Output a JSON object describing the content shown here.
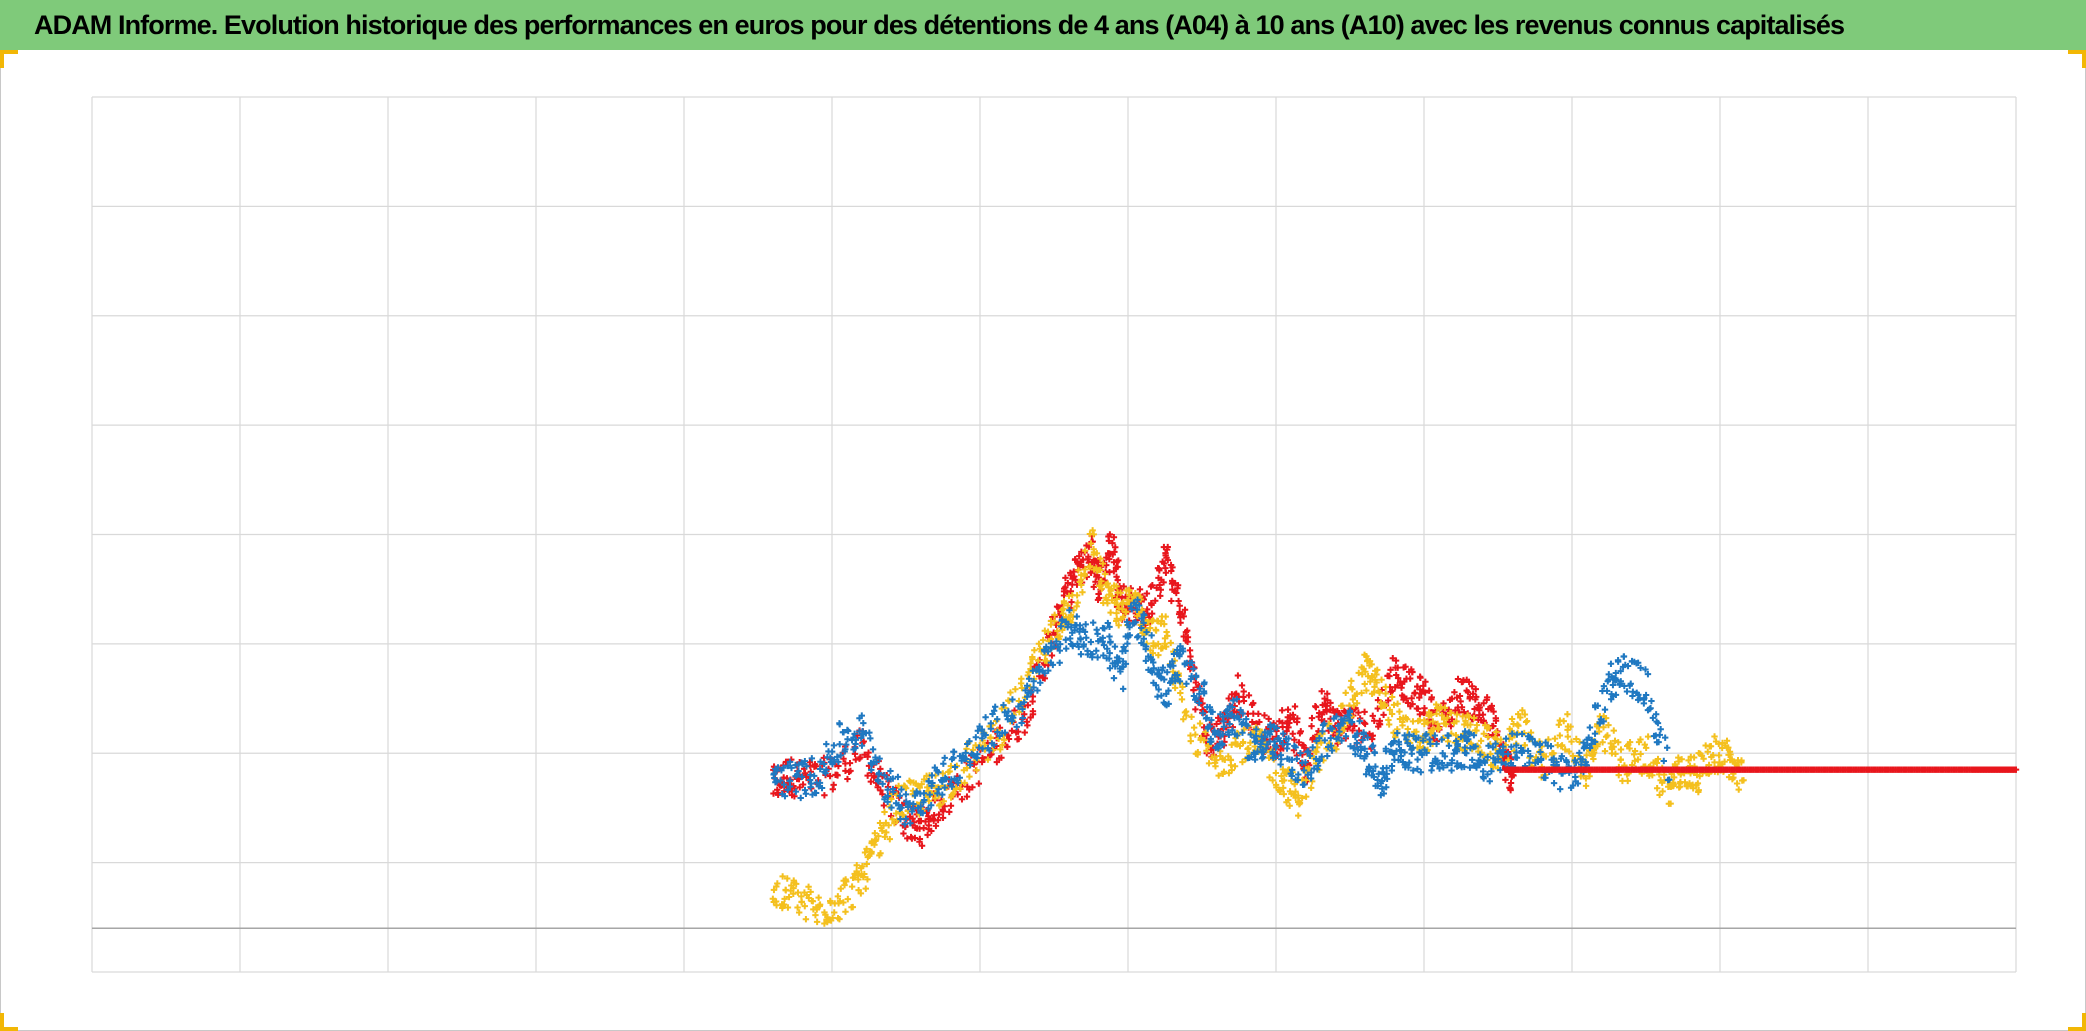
{
  "title": "ADAM Informe. Evolution historique des performances en euros pour des détentions de 4 ans (A04) à 10 ans (A10) avec les revenus connus capitalisés",
  "colors": {
    "title_bar": "#7fca7a",
    "grid": "#d9d9d9",
    "zero_line": "#a6a6a6",
    "corner_accent": "#f2b705"
  },
  "chart_data": {
    "type": "scatter",
    "marker": "plus",
    "grid": true,
    "xlabel": "",
    "ylabel": "",
    "x_divisions": 13,
    "y_divisions": 8,
    "zero_line": true,
    "series": [
      {
        "color": "#e8161c",
        "points": [
          [
            4.6,
            -0.9
          ],
          [
            4.7,
            -0.8
          ],
          [
            4.8,
            -0.85
          ],
          [
            5.0,
            -0.8
          ],
          [
            5.2,
            -0.55
          ],
          [
            5.35,
            -0.95
          ],
          [
            5.5,
            -1.2
          ],
          [
            5.6,
            -1.3
          ],
          [
            5.7,
            -1.1
          ],
          [
            5.9,
            -0.85
          ],
          [
            6.1,
            -0.55
          ],
          [
            6.3,
            -0.25
          ],
          [
            6.45,
            0.3
          ],
          [
            6.55,
            0.75
          ],
          [
            6.65,
            1.05
          ],
          [
            6.75,
            1.25
          ],
          [
            6.8,
            0.95
          ],
          [
            6.9,
            1.3
          ],
          [
            6.95,
            0.8
          ],
          [
            7.05,
            0.75
          ],
          [
            7.15,
            0.7
          ],
          [
            7.25,
            1.2
          ],
          [
            7.35,
            0.75
          ],
          [
            7.45,
            0.05
          ],
          [
            7.55,
            -0.5
          ],
          [
            7.65,
            -0.35
          ],
          [
            7.75,
            -0.05
          ],
          [
            7.9,
            -0.4
          ],
          [
            8.0,
            -0.5
          ],
          [
            8.1,
            -0.25
          ],
          [
            8.2,
            -0.75
          ],
          [
            8.3,
            -0.1
          ],
          [
            8.4,
            -0.35
          ],
          [
            8.5,
            -0.3
          ],
          [
            8.65,
            -0.4
          ],
          [
            8.8,
            0.15
          ],
          [
            8.9,
            0.0
          ],
          [
            9.0,
            -0.1
          ],
          [
            9.1,
            -0.35
          ],
          [
            9.25,
            -0.05
          ],
          [
            9.35,
            -0.15
          ],
          [
            9.45,
            -0.3
          ],
          [
            9.55,
            -0.7
          ],
          [
            9.6,
            -0.8
          ]
        ]
      },
      {
        "color": "#f4c01e",
        "points": [
          [
            4.6,
            -1.9
          ],
          [
            4.75,
            -1.9
          ],
          [
            4.9,
            -2.05
          ],
          [
            5.05,
            -1.95
          ],
          [
            5.2,
            -1.75
          ],
          [
            5.3,
            -1.45
          ],
          [
            5.45,
            -1.05
          ],
          [
            5.6,
            -1.0
          ],
          [
            5.75,
            -0.9
          ],
          [
            5.95,
            -0.65
          ],
          [
            6.15,
            -0.35
          ],
          [
            6.35,
            0.1
          ],
          [
            6.5,
            0.5
          ],
          [
            6.6,
            0.7
          ],
          [
            6.75,
            1.3
          ],
          [
            6.85,
            0.85
          ],
          [
            6.95,
            0.7
          ],
          [
            7.05,
            0.8
          ],
          [
            7.15,
            0.45
          ],
          [
            7.25,
            0.5
          ],
          [
            7.4,
            -0.35
          ],
          [
            7.6,
            -0.7
          ],
          [
            7.75,
            -0.5
          ],
          [
            7.9,
            -0.55
          ],
          [
            8.05,
            -0.85
          ],
          [
            8.15,
            -1.0
          ],
          [
            8.3,
            -0.6
          ],
          [
            8.45,
            -0.3
          ],
          [
            8.6,
            0.15
          ],
          [
            8.7,
            0.0
          ],
          [
            8.85,
            -0.4
          ],
          [
            9.0,
            -0.45
          ],
          [
            9.1,
            -0.3
          ],
          [
            9.25,
            -0.4
          ],
          [
            9.35,
            -0.45
          ],
          [
            9.5,
            -0.6
          ],
          [
            9.65,
            -0.35
          ],
          [
            9.8,
            -0.7
          ],
          [
            9.95,
            -0.4
          ],
          [
            10.1,
            -0.75
          ],
          [
            10.2,
            -0.4
          ],
          [
            10.35,
            -0.7
          ],
          [
            10.5,
            -0.6
          ],
          [
            10.65,
            -0.95
          ],
          [
            10.75,
            -0.75
          ],
          [
            10.85,
            -0.8
          ],
          [
            10.95,
            -0.6
          ],
          [
            11.05,
            -0.65
          ],
          [
            11.15,
            -0.85
          ]
        ]
      },
      {
        "color": "#1f78c1",
        "points": [
          [
            4.6,
            -0.8
          ],
          [
            4.75,
            -0.85
          ],
          [
            4.9,
            -0.8
          ],
          [
            5.05,
            -0.5
          ],
          [
            5.2,
            -0.4
          ],
          [
            5.35,
            -0.85
          ],
          [
            5.5,
            -1.1
          ],
          [
            5.65,
            -0.95
          ],
          [
            5.8,
            -0.75
          ],
          [
            5.95,
            -0.6
          ],
          [
            6.1,
            -0.35
          ],
          [
            6.3,
            -0.15
          ],
          [
            6.45,
            0.25
          ],
          [
            6.6,
            0.55
          ],
          [
            6.7,
            0.45
          ],
          [
            6.85,
            0.45
          ],
          [
            6.95,
            0.1
          ],
          [
            7.05,
            0.7
          ],
          [
            7.15,
            0.3
          ],
          [
            7.25,
            -0.05
          ],
          [
            7.35,
            0.25
          ],
          [
            7.5,
            -0.05
          ],
          [
            7.6,
            -0.5
          ],
          [
            7.7,
            -0.2
          ],
          [
            7.85,
            -0.55
          ],
          [
            7.95,
            -0.45
          ],
          [
            8.05,
            -0.6
          ],
          [
            8.2,
            -0.75
          ],
          [
            8.35,
            -0.45
          ],
          [
            8.5,
            -0.35
          ],
          [
            8.6,
            -0.55
          ],
          [
            8.7,
            -0.85
          ],
          [
            8.8,
            -0.55
          ],
          [
            8.9,
            -0.6
          ],
          [
            9.05,
            -0.6
          ],
          [
            9.2,
            -0.6
          ],
          [
            9.3,
            -0.55
          ],
          [
            9.4,
            -0.75
          ],
          [
            9.55,
            -0.55
          ],
          [
            9.7,
            -0.6
          ],
          [
            9.85,
            -0.7
          ],
          [
            10.0,
            -0.8
          ],
          [
            10.1,
            -0.6
          ],
          [
            10.25,
            0.05
          ],
          [
            10.35,
            0.15
          ],
          [
            10.5,
            0.0
          ],
          [
            10.65,
            -0.75
          ]
        ]
      },
      {
        "color": "#e8161c",
        "points": [
          [
            9.55,
            -0.75
          ],
          [
            9.9,
            -0.75
          ],
          [
            10.25,
            -0.75
          ],
          [
            10.6,
            -0.75
          ],
          [
            10.95,
            -0.75
          ],
          [
            11.3,
            -0.75
          ],
          [
            11.65,
            -0.75
          ],
          [
            12.0,
            -0.75
          ],
          [
            12.35,
            -0.75
          ],
          [
            12.7,
            -0.75
          ],
          [
            13.0,
            -0.75
          ]
        ]
      }
    ],
    "xlim": [
      0,
      13
    ],
    "ylim": [
      -2.6,
      5.4
    ]
  }
}
